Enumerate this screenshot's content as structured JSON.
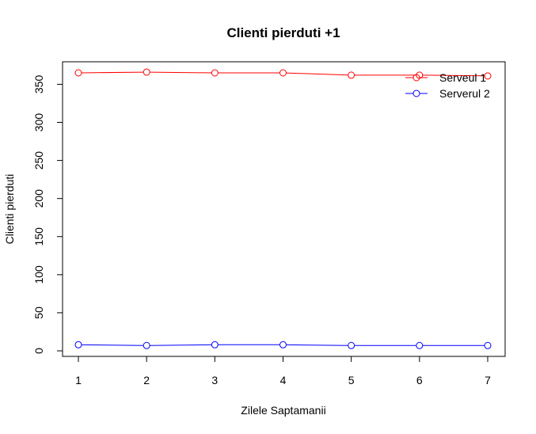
{
  "chart_data": {
    "type": "line",
    "title": "Clienti pierduti +1",
    "xlabel": "Zilele Saptamanii",
    "ylabel": "Clienti pierduti",
    "x": [
      1,
      2,
      3,
      4,
      5,
      6,
      7
    ],
    "xlim": [
      1,
      7
    ],
    "ylim": [
      0,
      365
    ],
    "xticks": [
      "1",
      "2",
      "3",
      "4",
      "5",
      "6",
      "7"
    ],
    "yticks": [
      "0",
      "50",
      "100",
      "150",
      "200",
      "250",
      "300",
      "350"
    ],
    "legend_position": "top-right",
    "grid": false,
    "series": [
      {
        "name": "Serveul 1",
        "color": "#ff0000",
        "marker": "circle-open",
        "values": [
          365,
          366,
          365,
          365,
          362,
          362,
          361
        ]
      },
      {
        "name": "Serverul 2",
        "color": "#0000ff",
        "marker": "circle-open",
        "values": [
          8,
          7,
          8,
          8,
          7,
          7,
          7
        ]
      }
    ]
  }
}
